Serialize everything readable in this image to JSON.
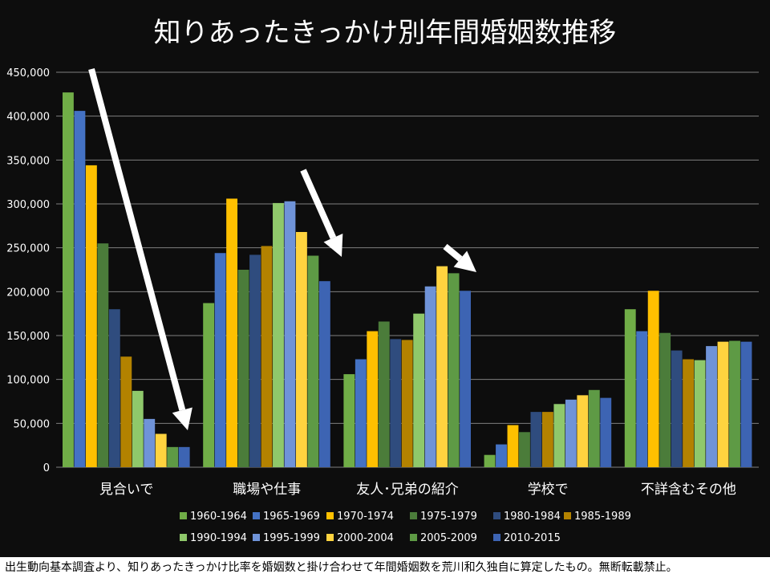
{
  "chart_data": {
    "type": "bar",
    "title": "知りあったきっかけ別年間婚姻数推移",
    "xlabel": "",
    "ylabel": "",
    "ylim": [
      0,
      450000
    ],
    "yticks": [
      "0",
      "50,000",
      "100,000",
      "150,000",
      "200,000",
      "250,000",
      "300,000",
      "350,000",
      "400,000",
      "450,000"
    ],
    "grid": true,
    "legend_position": "bottom",
    "categories": [
      "見合いで",
      "職場や仕事",
      "友人･兄弟の紹介",
      "学校で",
      "不詳含むその他"
    ],
    "series": [
      {
        "name": "1960-1964",
        "color": "#70ad47",
        "values": [
          427000,
          187000,
          106000,
          14000,
          180000
        ]
      },
      {
        "name": "1965-1969",
        "color": "#4472c4",
        "values": [
          406000,
          244000,
          123000,
          26000,
          155000
        ]
      },
      {
        "name": "1970-1974",
        "color": "#ffc000",
        "values": [
          344000,
          306000,
          155000,
          48000,
          201000
        ]
      },
      {
        "name": "1975-1979",
        "color": "#4b7c3a",
        "values": [
          255000,
          225000,
          166000,
          40000,
          153000
        ]
      },
      {
        "name": "1980-1984",
        "color": "#2f4c7e",
        "values": [
          180000,
          242000,
          146000,
          63000,
          133000
        ]
      },
      {
        "name": "1985-1989",
        "color": "#b38200",
        "values": [
          126000,
          252000,
          145000,
          63000,
          123000
        ]
      },
      {
        "name": "1990-1994",
        "color": "#8fc86b",
        "values": [
          87000,
          301000,
          175000,
          72000,
          122000
        ]
      },
      {
        "name": "1995-1999",
        "color": "#6f93d8",
        "values": [
          55000,
          303000,
          206000,
          77000,
          138000
        ]
      },
      {
        "name": "2000-2004",
        "color": "#ffd33f",
        "values": [
          38000,
          268000,
          229000,
          82000,
          143000
        ]
      },
      {
        "name": "2005-2009",
        "color": "#5e9a45",
        "values": [
          23000,
          241000,
          221000,
          88000,
          144000
        ]
      },
      {
        "name": "2010-2015",
        "color": "#3d64b3",
        "values": [
          23000,
          212000,
          201000,
          79000,
          143000
        ]
      }
    ]
  },
  "footer": {
    "note": "出生動向基本調査より、知りあったきっかけ比率を婚姻数と掛け合わせて年間婚姻数を荒川和久独自に算定したもの。無断転載禁止。"
  },
  "colors": {
    "background": "#0d0d0d",
    "text": "#ffffff",
    "grid": "#7f7f7f",
    "arrow": "#ffffff"
  }
}
